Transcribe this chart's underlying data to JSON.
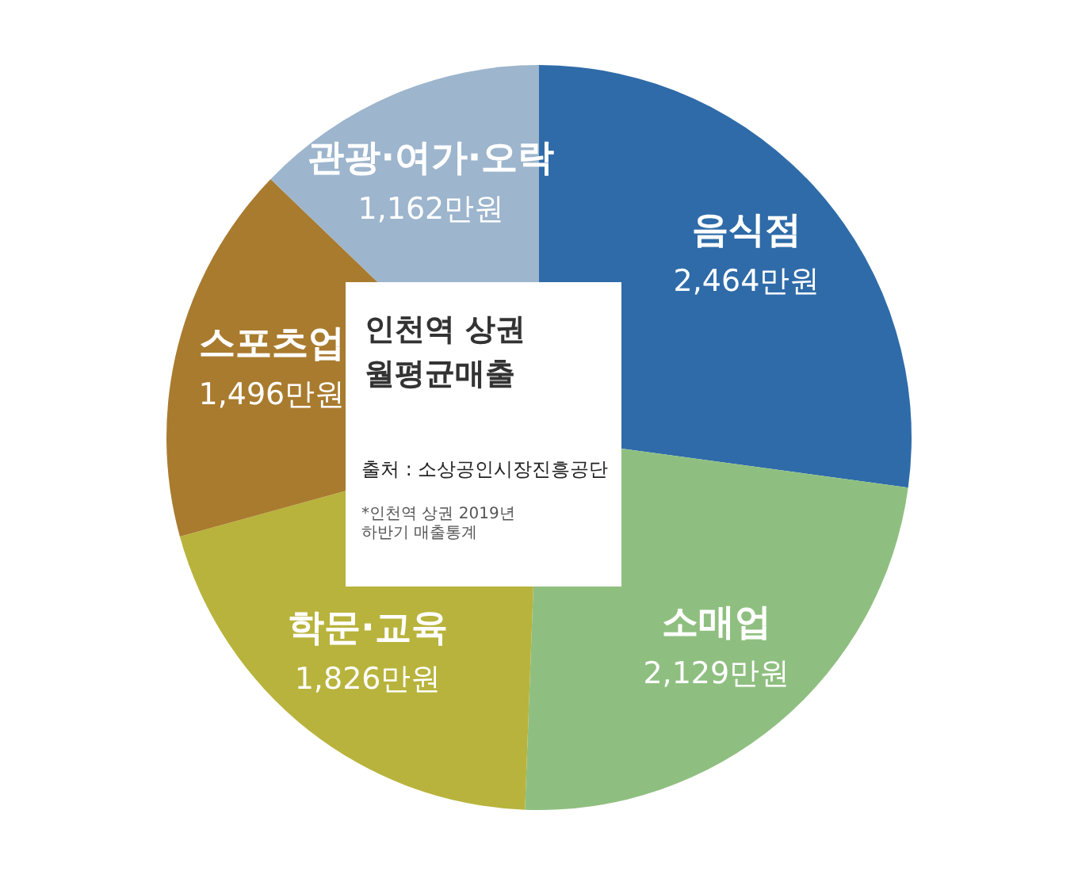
{
  "chart_data": {
    "type": "pie",
    "title": "인천역 상권\n월평균매출",
    "categories": [
      "음식점",
      "소매업",
      "학문·교육",
      "스포츠업",
      "관광·여가·오락"
    ],
    "values": [
      2464,
      2129,
      1826,
      1496,
      1162
    ],
    "value_labels": [
      "2,464만원",
      "2,129만원",
      "1,826만원",
      "1,496만원",
      "1,162만원"
    ],
    "colors": [
      "#2f6ba8",
      "#8fbf80",
      "#b8b33c",
      "#a97b2f",
      "#9db5cd"
    ],
    "annotations": [
      "출처 : 소상공인시장진흥공단",
      "*인천역 상권 2019년\n하반기 매출통계"
    ]
  }
}
